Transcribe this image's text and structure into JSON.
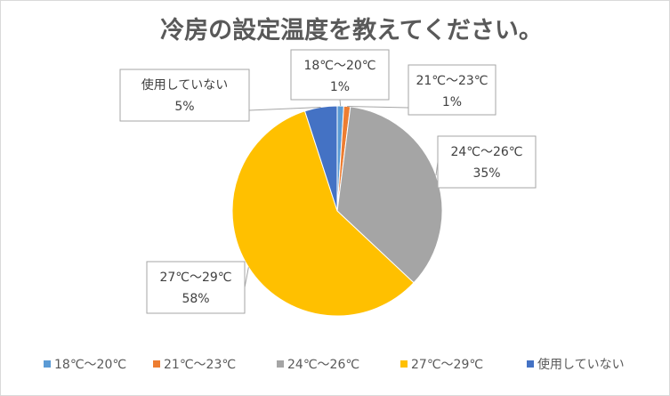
{
  "chart_data": {
    "type": "pie",
    "title": "冷房の設定温度を教えてください。",
    "categories": [
      "18℃～20℃",
      "21℃～23℃",
      "24℃～26℃",
      "27℃～29℃",
      "使用していない"
    ],
    "values": [
      1,
      1,
      35,
      58,
      5
    ],
    "data_labels": [
      "1%",
      "1%",
      "35%",
      "58%",
      "5%"
    ],
    "colors": [
      "#5b9bd5",
      "#ed7d31",
      "#a5a5a5",
      "#ffc000",
      "#4472c4"
    ],
    "start_angle_deg": 0,
    "direction": "clockwise",
    "legend": "bottom"
  }
}
